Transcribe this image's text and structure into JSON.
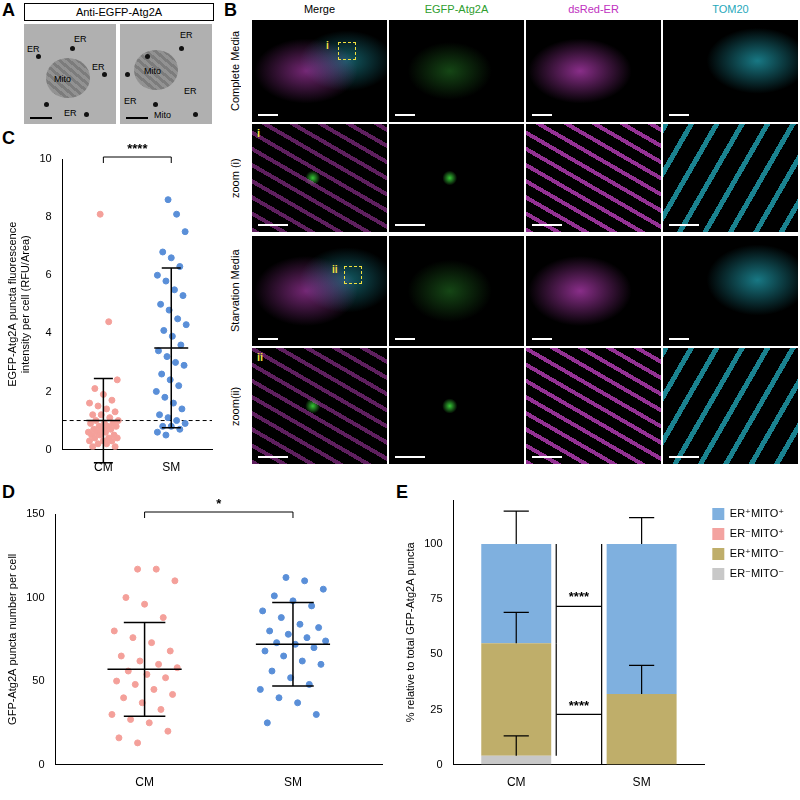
{
  "figure": {
    "letters": [
      "A",
      "B",
      "C",
      "D",
      "E"
    ],
    "panel_a": {
      "title": "Anti-EGFP-Atg2A",
      "images": [
        {
          "labels": [
            "ER",
            "Mito",
            "ER",
            "ER",
            "ER"
          ]
        },
        {
          "labels": [
            "ER",
            "Mito",
            "ER",
            "ER",
            "Mito"
          ]
        }
      ]
    },
    "panel_b": {
      "columns": [
        {
          "text": "Merge",
          "color": "#000000"
        },
        {
          "text": "EGFP-Atg2A",
          "color": "#2e9e2e"
        },
        {
          "text": "dsRed-ER",
          "color": "#c030c0"
        },
        {
          "text": "TOM20",
          "color": "#1fa8bb"
        }
      ],
      "groups": [
        {
          "label": "Complete Media",
          "zoom": "zoom (i)",
          "inset": "i"
        },
        {
          "label": "Starvation Media",
          "zoom": "zoom(ii)",
          "inset": "ii"
        }
      ]
    }
  },
  "chart_data": [
    {
      "type": "strip",
      "y_label": [
        "EGFP-Atg2A puncta fluorescence",
        "intensity per cell (RFU/Area)"
      ],
      "categories": [
        "CM",
        "SM"
      ],
      "colors": [
        "#f4a09a",
        "#5a8fd8"
      ],
      "values": [
        [
          8.1,
          4.4,
          2.4,
          2.1,
          1.9,
          1.7,
          1.6,
          1.5,
          1.4,
          1.3,
          1.2,
          1.2,
          1.1,
          1.0,
          1.0,
          0.9,
          0.9,
          0.9,
          0.8,
          0.8,
          0.8,
          0.7,
          0.7,
          0.7,
          0.6,
          0.6,
          0.6,
          0.5,
          0.5,
          0.5,
          0.4,
          0.4,
          0.4,
          0.3,
          0.3,
          0.3,
          0.2,
          0.2,
          0.1,
          0.1
        ],
        [
          8.6,
          8.1,
          7.5,
          6.8,
          6.6,
          6.3,
          6.0,
          5.8,
          5.5,
          5.3,
          5.0,
          4.8,
          4.5,
          4.3,
          4.1,
          3.9,
          3.6,
          3.4,
          3.2,
          3.0,
          2.9,
          2.6,
          2.4,
          2.2,
          2.0,
          1.8,
          1.6,
          1.4,
          1.2,
          1.1,
          1.0,
          0.9,
          0.8,
          0.8,
          0.7,
          0.6,
          0.5
        ]
      ],
      "mean": [
        1.0,
        3.5
      ],
      "sd": [
        1.45,
        2.75
      ],
      "reference_line": 1,
      "significance": "****",
      "ylim": [
        0,
        10
      ],
      "yticks": [
        0,
        2,
        4,
        6,
        8,
        10
      ],
      "grid": false
    },
    {
      "type": "strip",
      "y_label": "GFP-Atg2A puncta number per cell",
      "categories": [
        "CM",
        "SM"
      ],
      "colors": [
        "#f4a09a",
        "#5a8fd8"
      ],
      "values": [
        [
          117,
          117,
          110,
          100,
          96,
          88,
          80,
          76,
          73,
          68,
          65,
          62,
          60,
          58,
          56,
          54,
          52,
          50,
          48,
          45,
          42,
          40,
          37,
          33,
          30,
          27,
          25,
          20,
          16,
          13
        ],
        [
          112,
          110,
          105,
          101,
          98,
          95,
          92,
          88,
          84,
          82,
          80,
          78,
          76,
          74,
          73,
          72,
          70,
          68,
          65,
          62,
          60,
          56,
          52,
          48,
          45,
          40,
          37,
          30,
          25
        ]
      ],
      "mean": [
        57,
        72
      ],
      "sd": [
        28,
        25
      ],
      "significance": "*",
      "ylim": [
        0,
        150
      ],
      "yticks": [
        0,
        50,
        100,
        150
      ],
      "grid": false
    },
    {
      "type": "bar",
      "stacked": true,
      "y_label": "% relative to total GFP-Atg2A puncta",
      "categories": [
        "CM",
        "SM"
      ],
      "series": [
        {
          "name": "ER⁻MITO⁻",
          "color": "#c8c8c8",
          "values": [
            4,
            0
          ],
          "sd": [
            9,
            null
          ]
        },
        {
          "name": "ER⁺MITO⁻",
          "color": "#bfae6a",
          "values": [
            51,
            32
          ],
          "sd": [
            14,
            13
          ]
        },
        {
          "name": "ER⁻MITO⁺",
          "color": "#f3a3a0",
          "values": [
            0,
            0
          ],
          "sd": [
            null,
            null
          ]
        },
        {
          "name": "ER⁺MITO⁺",
          "color": "#7fb0df",
          "values": [
            45,
            68
          ],
          "sd": [
            15,
            12
          ]
        }
      ],
      "significance": [
        {
          "text": "****",
          "series": "ER⁺MITO⁺"
        },
        {
          "text": "****",
          "series": "ER⁺MITO⁻"
        }
      ],
      "ylim": [
        0,
        120
      ],
      "yticks": [
        0,
        25,
        50,
        75,
        100
      ],
      "legend": "right",
      "grid": false
    }
  ]
}
